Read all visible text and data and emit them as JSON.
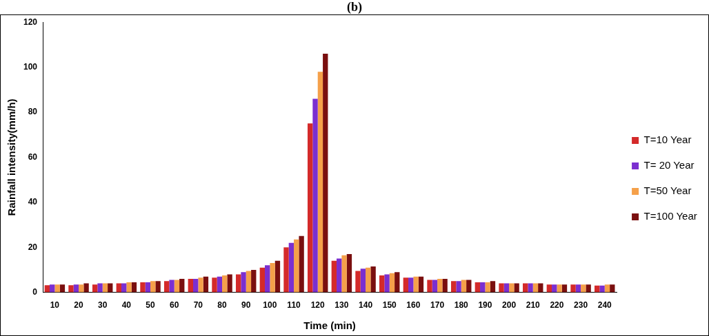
{
  "chart_data": {
    "type": "bar",
    "title": "(b)",
    "xlabel": "Time (min)",
    "ylabel": "Rainfall intensity(mm/h)",
    "categories": [
      "10",
      "20",
      "30",
      "40",
      "50",
      "60",
      "70",
      "80",
      "90",
      "100",
      "110",
      "120",
      "130",
      "140",
      "150",
      "160",
      "170",
      "180",
      "190",
      "200",
      "210",
      "220",
      "230",
      "240"
    ],
    "series": [
      {
        "name": "T=10 Year",
        "color": "#d42a2a",
        "values": [
          3.2,
          3.2,
          3.5,
          4,
          4.5,
          5,
          6,
          6.5,
          8,
          11,
          20,
          75,
          14,
          9.5,
          7.5,
          6.5,
          5.5,
          5,
          4.5,
          4,
          4,
          3.5,
          3.5,
          3
        ]
      },
      {
        "name": "T= 20 Year",
        "color": "#7b2fd0",
        "values": [
          3.5,
          3.5,
          4,
          4,
          4.5,
          5.5,
          6,
          7,
          9,
          12,
          22,
          86,
          15,
          10.5,
          8,
          6.5,
          5.5,
          5,
          4.5,
          4,
          4,
          3.5,
          3.5,
          3
        ]
      },
      {
        "name": "T=50 Year",
        "color": "#f5a04a",
        "values": [
          3.5,
          3.5,
          4,
          4.5,
          5,
          5.5,
          6.5,
          7.5,
          9.5,
          13,
          23.5,
          98,
          16.5,
          11,
          8.5,
          7,
          6,
          5.5,
          4.5,
          4,
          4,
          3.5,
          3.5,
          3.5
        ]
      },
      {
        "name": "T=100 Year",
        "color": "#7a0f0f",
        "values": [
          3.5,
          4,
          4,
          4.5,
          5,
          6,
          7,
          8,
          10,
          14,
          25,
          106,
          17,
          11.5,
          9,
          7,
          6,
          5.5,
          5,
          4,
          4,
          3.5,
          3.5,
          3.5
        ]
      }
    ],
    "ylim": [
      0,
      120
    ],
    "yticks": [
      0,
      20,
      40,
      60,
      80,
      100,
      120
    ],
    "grid": false,
    "legend": "right"
  }
}
